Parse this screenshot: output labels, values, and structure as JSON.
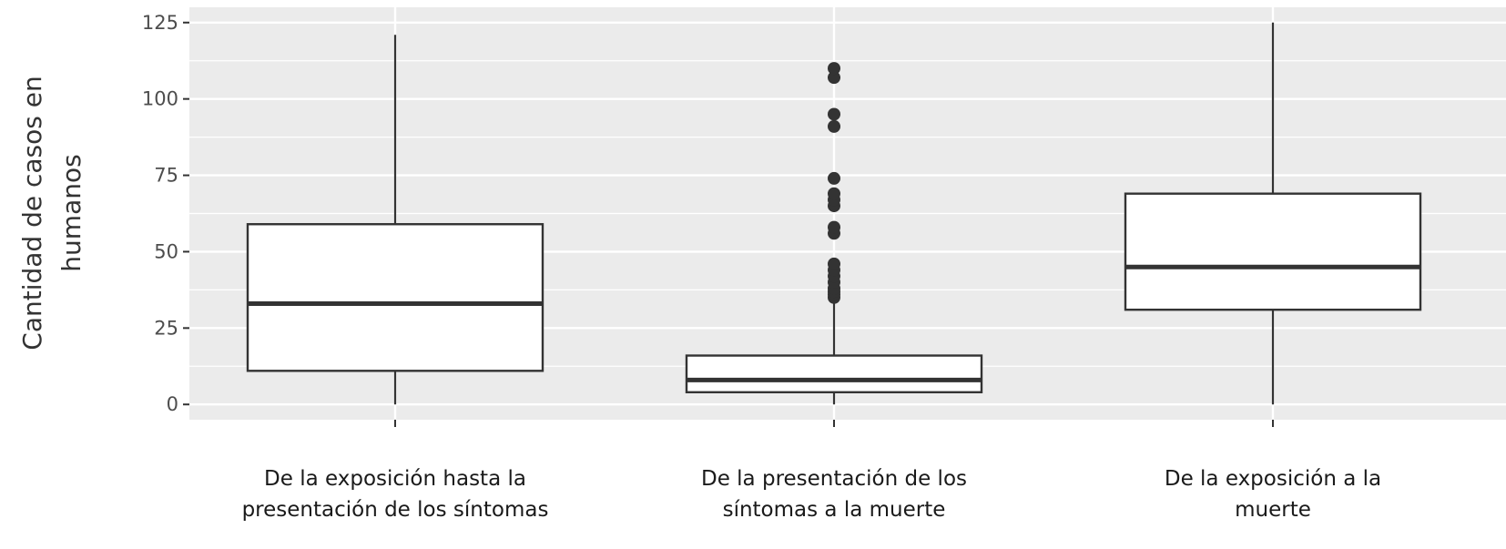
{
  "chart_data": {
    "type": "boxplot",
    "title": "",
    "xlabel": "",
    "ylabel": [
      "Cantidad de casos en",
      "humanos"
    ],
    "ylim": [
      -5,
      130
    ],
    "yticks": [
      0,
      25,
      50,
      75,
      100,
      125
    ],
    "ytick_labels": [
      "0",
      "25",
      "50",
      "75",
      "100",
      "125"
    ],
    "grid": true,
    "legend": "none",
    "colors": {
      "panel": "#ebebeb",
      "grid": "#ffffff",
      "box_fill": "#ffffff",
      "box_line": "#333333",
      "tick": "#333333"
    },
    "categories": [
      {
        "label": [
          "De la exposición hasta la",
          "presentación de los síntomas"
        ],
        "whisker_low": 0,
        "q1": 11,
        "median": 33,
        "q3": 59,
        "whisker_high": 121,
        "outliers": []
      },
      {
        "label": [
          "De la presentación de los",
          "síntomas a la muerte"
        ],
        "whisker_low": 0,
        "q1": 4,
        "median": 8,
        "q3": 16,
        "whisker_high": 33,
        "outliers": [
          35,
          36,
          37,
          38,
          40,
          42,
          44,
          46,
          56,
          58,
          65,
          67,
          69,
          74,
          91,
          95,
          107,
          110
        ]
      },
      {
        "label": [
          "De la exposición a la",
          "muerte"
        ],
        "whisker_low": 0,
        "q1": 31,
        "median": 45,
        "q3": 69,
        "whisker_high": 125,
        "outliers": []
      }
    ]
  }
}
